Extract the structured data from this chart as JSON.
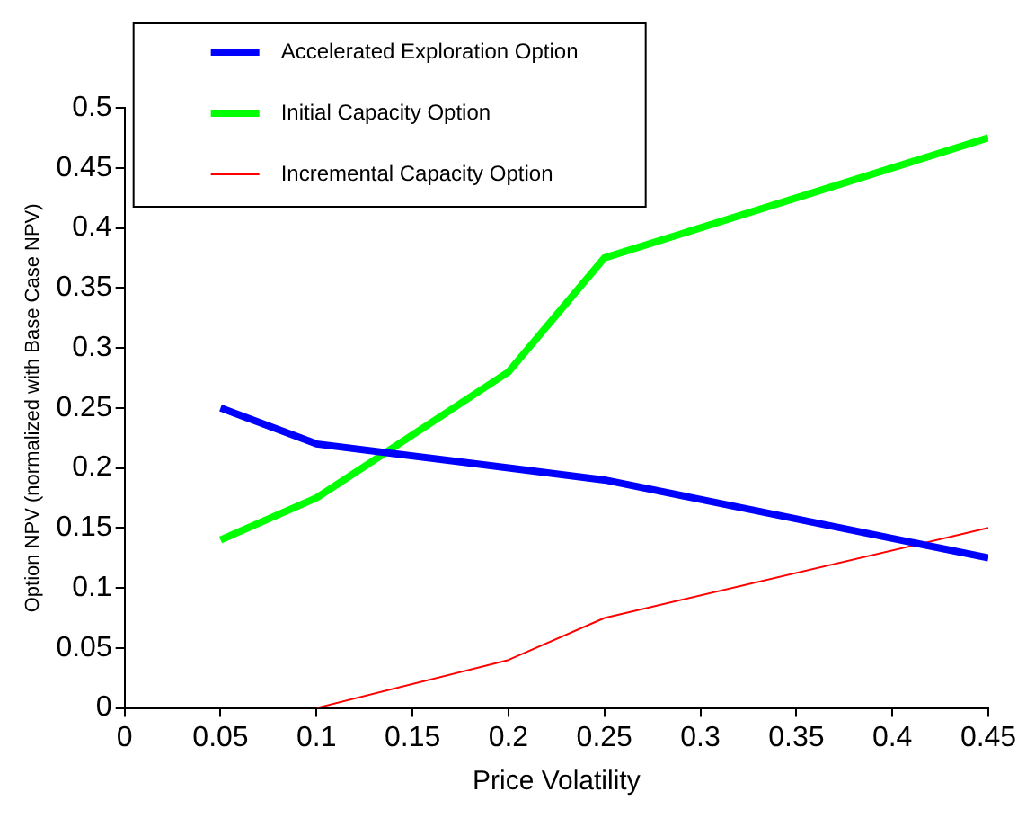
{
  "chart_data": {
    "type": "line",
    "xlabel": "Price Volatility",
    "ylabel": "Option NPV (normalized with Base Case NPV)",
    "xlim": [
      0,
      0.45
    ],
    "xticks": [
      0,
      0.05,
      0.1,
      0.15,
      0.2,
      0.25,
      0.3,
      0.35,
      0.4,
      0.45
    ],
    "ylim": [
      0,
      0.5
    ],
    "yticks": [
      0,
      0.05,
      0.1,
      0.15,
      0.2,
      0.25,
      0.3,
      0.35,
      0.4,
      0.45,
      0.5
    ],
    "grid": false,
    "legend": "top left",
    "marker": "none",
    "line_style": "solid",
    "series": [
      {
        "name": "Accelerated Exploration Option",
        "color": "#0000ff",
        "x": [
          0.05,
          0.1,
          0.2,
          0.25,
          0.45
        ],
        "values": [
          0.25,
          0.22,
          0.2,
          0.19,
          0.125
        ]
      },
      {
        "name": "Initial Capacity Option",
        "color": "#00ff00",
        "x": [
          0.05,
          0.1,
          0.2,
          0.25,
          0.45
        ],
        "values": [
          0.14,
          0.175,
          0.28,
          0.375,
          0.475
        ]
      },
      {
        "name": "Incremental Capacity Option",
        "color": "#ff0000",
        "x": [
          0.1,
          0.2,
          0.25,
          0.45
        ],
        "values": [
          0,
          0.04,
          0.075,
          0.15
        ]
      }
    ]
  }
}
